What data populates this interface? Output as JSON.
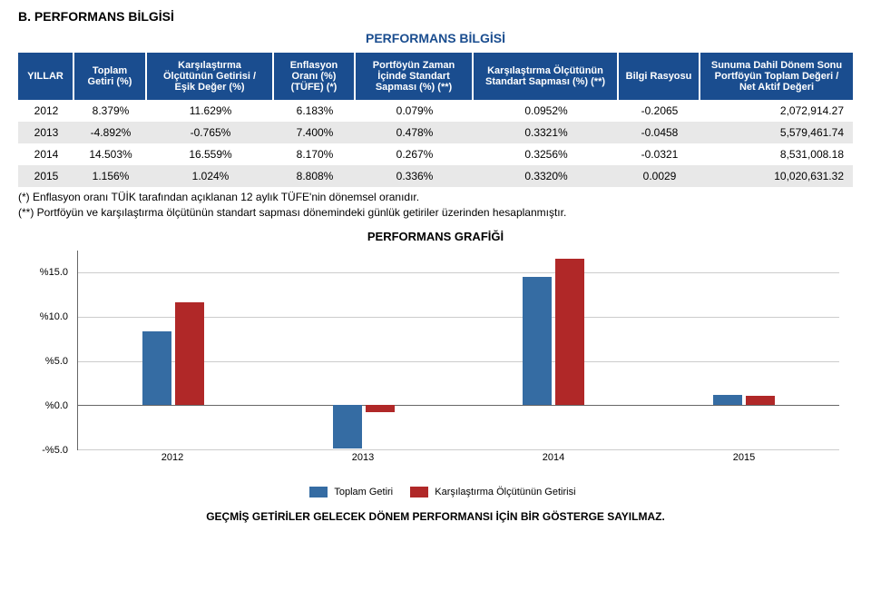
{
  "section_title": "B. PERFORMANS BİLGİSİ",
  "subtitle": "PERFORMANS BİLGİSİ",
  "headers": {
    "yillar": "YILLAR",
    "toplam_getiri": "Toplam Getiri (%)",
    "karsilastirma_getiri": "Karşılaştırma Ölçütünün Getirisi / Eşik Değer (%)",
    "enflasyon": "Enflasyon Oranı (%) (TÜFE) (*)",
    "portfoy_sapma": "Portföyün Zaman İçinde Standart Sapması (%) (**)",
    "karsilastirma_sapma": "Karşılaştırma Ölçütünün Standart Sapması (%) (**)",
    "bilgi_rasyosu": "Bilgi Rasyosu",
    "sunuma_dahil": "Sunuma Dahil Dönem Sonu Portföyün Toplam Değeri / Net Aktif Değeri"
  },
  "rows": [
    {
      "yil": "2012",
      "tg": "8.379%",
      "ko": "11.629%",
      "enf": "6.183%",
      "pzs": "0.079%",
      "kss": "0.0952%",
      "br": "-0.2065",
      "sd": "2,072,914.27"
    },
    {
      "yil": "2013",
      "tg": "-4.892%",
      "ko": "-0.765%",
      "enf": "7.400%",
      "pzs": "0.478%",
      "kss": "0.3321%",
      "br": "-0.0458",
      "sd": "5,579,461.74"
    },
    {
      "yil": "2014",
      "tg": "14.503%",
      "ko": "16.559%",
      "enf": "8.170%",
      "pzs": "0.267%",
      "kss": "0.3256%",
      "br": "-0.0321",
      "sd": "8,531,008.18"
    },
    {
      "yil": "2015",
      "tg": "1.156%",
      "ko": "1.024%",
      "enf": "8.808%",
      "pzs": "0.336%",
      "kss": "0.3320%",
      "br": "0.0029",
      "sd": "10,020,631.32"
    }
  ],
  "notes": {
    "n1": "(*) Enflasyon oranı TÜİK tarafından açıklanan 12 aylık TÜFE'nin dönemsel oranıdır.",
    "n2": "(**) Portföyün ve karşılaştırma ölçütünün standart sapması dönemindeki günlük getiriler üzerinden hesaplanmıştır."
  },
  "chart": {
    "title": "PERFORMANS GRAFİĞİ",
    "ymin": -5.0,
    "ymax": 17.5,
    "yticks": [
      {
        "v": -5.0,
        "label": "-%5.0"
      },
      {
        "v": 0.0,
        "label": "%0.0"
      },
      {
        "v": 5.0,
        "label": "%5.0"
      },
      {
        "v": 10.0,
        "label": "%10.0"
      },
      {
        "v": 15.0,
        "label": "%15.0"
      }
    ],
    "categories": [
      "2012",
      "2013",
      "2014",
      "2015"
    ],
    "series": [
      {
        "name": "Toplam Getiri",
        "color": "#356ca3",
        "values": [
          8.379,
          -4.892,
          14.503,
          1.156
        ]
      },
      {
        "name": "Karşılaştırma Ölçütünün Getirisi",
        "color": "#b02828",
        "values": [
          11.629,
          -0.765,
          16.559,
          1.024
        ]
      }
    ],
    "legend": {
      "s1": "Toplam Getiri",
      "s2": "Karşılaştırma Ölçütünün Getirisi"
    },
    "grid_color": "#cccccc"
  },
  "disclaimer": "GEÇMİŞ GETİRİLER GELECEK DÖNEM PERFORMANSI İÇİN BİR GÖSTERGE SAYILMAZ."
}
